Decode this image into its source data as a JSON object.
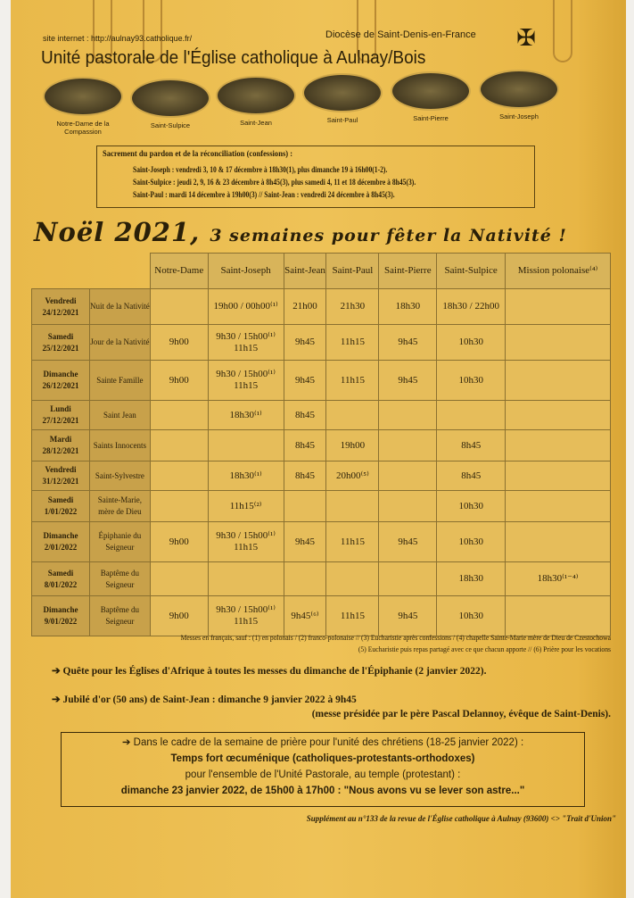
{
  "header": {
    "site_label": "site internet :",
    "site_url": "http://aulnay93.catholique.fr/",
    "diocese": "Diocèse de Saint-Denis-en-France",
    "title": "Unité pastorale de l'Église catholique à Aulnay/Bois"
  },
  "churches": [
    "Notre-Dame de la Compassion",
    "Saint-Sulpice",
    "Saint-Jean",
    "Saint-Paul",
    "Saint-Pierre",
    "Saint-Joseph"
  ],
  "confessions": {
    "title": "Sacrement du pardon et de la réconciliation (confessions) :",
    "lines": [
      "Saint-Joseph : vendredi 3, 10 & 17 décembre à 18h30(1), plus dimanche 19 à 16h00(1-2).",
      "Saint-Sulpice : jeudi 2, 9, 16 & 23 décembre à 8h45(3), plus samedi 4, 11 et 18 décembre à 8h45(3).",
      "Saint-Paul : mardi 14 décembre à 19h00(3) // Saint-Jean : vendredi 24 décembre à 8h45(3)."
    ]
  },
  "headline": {
    "main": "Noël 2021,",
    "sub": "3 semaines pour fêter la Nativité !"
  },
  "table": {
    "columns": [
      "Notre-Dame",
      "Saint-Joseph",
      "Saint-Jean",
      "Saint-Paul",
      "Saint-Pierre",
      "Saint-Sulpice",
      "Mission polonaise⁽⁴⁾"
    ],
    "rows": [
      {
        "date": "Vendredi 24/12/2021",
        "feast": "Nuit de la Nativité",
        "cells": [
          "",
          "19h00 / 00h00⁽¹⁾",
          "21h00",
          "21h30",
          "18h30",
          "18h30 / 22h00",
          ""
        ]
      },
      {
        "date": "Samedi 25/12/2021",
        "feast": "Jour de la Nativité",
        "cells": [
          "9h00",
          "9h30 / 15h00⁽¹⁾ 11h15",
          "9h45",
          "11h15",
          "9h45",
          "10h30",
          ""
        ]
      },
      {
        "date": "Dimanche 26/12/2021",
        "feast": "Sainte Famille",
        "cells": [
          "9h00",
          "9h30 / 15h00⁽¹⁾ 11h15",
          "9h45",
          "11h15",
          "9h45",
          "10h30",
          ""
        ]
      },
      {
        "date": "Lundi 27/12/2021",
        "feast": "Saint Jean",
        "cells": [
          "",
          "18h30⁽¹⁾",
          "8h45",
          "",
          "",
          "",
          ""
        ]
      },
      {
        "date": "Mardi 28/12/2021",
        "feast": "Saints Innocents",
        "cells": [
          "",
          "",
          "8h45",
          "19h00",
          "",
          "8h45",
          ""
        ]
      },
      {
        "date": "Vendredi 31/12/2021",
        "feast": "Saint-Sylvestre",
        "cells": [
          "",
          "18h30⁽¹⁾",
          "8h45",
          "20h00⁽⁵⁾",
          "",
          "8h45",
          ""
        ]
      },
      {
        "date": "Samedi 1/01/2022",
        "feast": "Sainte-Marie, mère de Dieu",
        "cells": [
          "",
          "11h15⁽²⁾",
          "",
          "",
          "",
          "10h30",
          ""
        ]
      },
      {
        "date": "Dimanche 2/01/2022",
        "feast": "Épiphanie du Seigneur",
        "cells": [
          "9h00",
          "9h30 / 15h00⁽¹⁾ 11h15",
          "9h45",
          "11h15",
          "9h45",
          "10h30",
          ""
        ]
      },
      {
        "date": "Samedi 8/01/2022",
        "feast": "Baptême du Seigneur",
        "cells": [
          "",
          "",
          "",
          "",
          "",
          "18h30",
          "18h30⁽¹⁻⁴⁾"
        ]
      },
      {
        "date": "Dimanche 9/01/2022",
        "feast": "Baptême du Seigneur",
        "cells": [
          "9h00",
          "9h30 / 15h00⁽¹⁾ 11h15",
          "9h45⁽⁶⁾",
          "11h15",
          "9h45",
          "10h30",
          ""
        ]
      }
    ]
  },
  "notes": [
    "Messes en français, sauf : (1) en polonais / (2) franco-polonaise // (3) Eucharistie après confessions / (4) chapelle Sainte-Marie mère de Dieu de Czestochowa",
    "(5) Eucharistie puis repas partagé avec ce que chacun apporte // (6) Prière pour les vocations"
  ],
  "announcements": [
    "➔ Quête pour les Églises d'Afrique à toutes les messes du dimanche de l'Épiphanie (2 janvier 2022).",
    "➔ Jubilé d'or (50 ans) de Saint-Jean : dimanche 9 janvier 2022 à 9h45"
  ],
  "presided": "(messe présidée par le père Pascal Delannoy, évêque de Saint-Denis).",
  "box": {
    "line1": "➔ Dans le cadre de la semaine de prière pour l'unité des chrétiens (18-25 janvier 2022) :",
    "line2": "Temps fort œcuménique (catholiques-protestants-orthodoxes)",
    "line3": "pour l'ensemble de l'Unité Pastorale, au temple (protestant) :",
    "line4": "dimanche 23 janvier 2022, de 15h00 à 17h00 : \"Nous avons vu se lever son astre...\""
  },
  "supplement": "Supplément au n°133 de la revue de l'Église catholique à Aulnay (93600) <> \"Trait d'Union\""
}
